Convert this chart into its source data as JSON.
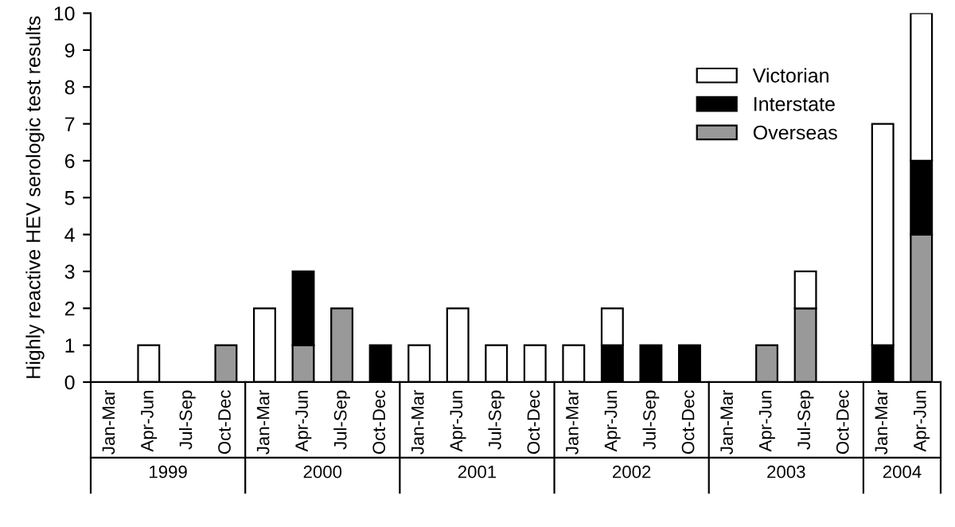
{
  "chart_data": {
    "type": "bar",
    "stacked": true,
    "ylabel": "Highly reactive HEV serologic test results",
    "categories": [
      "Jan-Mar",
      "Apr-Jun",
      "Jul-Sep",
      "Oct-Dec",
      "Jan-Mar",
      "Apr-Jun",
      "Jul-Sep",
      "Oct-Dec",
      "Jan-Mar",
      "Apr-Jun",
      "Jul-Sep",
      "Oct-Dec",
      "Jan-Mar",
      "Apr-Jun",
      "Jul-Sep",
      "Oct-Dec",
      "Jan-Mar",
      "Apr-Jun",
      "Jul-Sep",
      "Oct-Dec",
      "Jan-Mar",
      "Apr-Jun"
    ],
    "series": [
      {
        "name": "Overseas",
        "color": "#999999",
        "values": [
          0,
          0,
          0,
          1,
          0,
          1,
          2,
          0,
          0,
          0,
          0,
          0,
          0,
          0,
          0,
          0,
          0,
          1,
          2,
          0,
          0,
          4
        ]
      },
      {
        "name": "Interstate",
        "color": "#000000",
        "values": [
          0,
          0,
          0,
          0,
          0,
          2,
          0,
          1,
          0,
          0,
          0,
          0,
          0,
          1,
          1,
          1,
          0,
          0,
          0,
          0,
          1,
          2
        ]
      },
      {
        "name": "Victorian",
        "color": "#ffffff",
        "values": [
          0,
          1,
          0,
          0,
          2,
          0,
          0,
          0,
          1,
          2,
          1,
          1,
          1,
          1,
          0,
          0,
          0,
          0,
          1,
          0,
          6,
          4
        ]
      }
    ],
    "annotations": [
      "1999",
      "2000",
      "2001",
      "2002",
      "2003",
      "2004"
    ],
    "ylim": [
      0,
      10
    ],
    "yticks": [
      0,
      1,
      2,
      3,
      4,
      5,
      6,
      7,
      8,
      9,
      10
    ],
    "legend": "top right"
  }
}
